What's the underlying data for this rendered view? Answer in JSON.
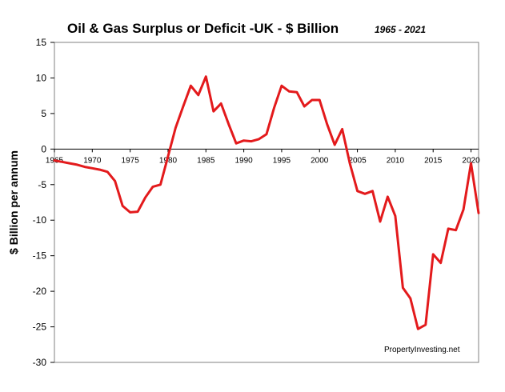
{
  "chart_data": {
    "type": "line",
    "title": "Oil & Gas Surplus or Deficit -UK - $ Billion",
    "subtitle": "1965 - 2021",
    "ylabel": "$ Billion per annum",
    "xlabel": "",
    "xlim": [
      1965,
      2021
    ],
    "ylim": [
      -30,
      15
    ],
    "yticks": [
      15,
      10,
      5,
      0,
      -5,
      -10,
      -15,
      -20,
      -25,
      -30
    ],
    "xticks": [
      1965,
      1970,
      1975,
      1980,
      1985,
      1990,
      1995,
      2000,
      2005,
      2010,
      2015,
      2020
    ],
    "grid": false,
    "legend": "none",
    "annotation": "PropertyInvesting.net",
    "series": [
      {
        "color": "#e31a1c",
        "x": [
          1965,
          1966,
          1967,
          1968,
          1969,
          1970,
          1971,
          1972,
          1973,
          1974,
          1975,
          1976,
          1977,
          1978,
          1979,
          1980,
          1981,
          1982,
          1983,
          1984,
          1985,
          1986,
          1987,
          1988,
          1989,
          1990,
          1991,
          1992,
          1993,
          1994,
          1995,
          1996,
          1997,
          1998,
          1999,
          2000,
          2001,
          2002,
          2003,
          2004,
          2005,
          2006,
          2007,
          2008,
          2009,
          2010,
          2011,
          2012,
          2013,
          2014,
          2015,
          2016,
          2017,
          2018,
          2019,
          2020,
          2021
        ],
        "values": [
          -1.6,
          -1.8,
          -2.0,
          -2.2,
          -2.5,
          -2.7,
          -2.9,
          -3.2,
          -4.5,
          -8.0,
          -8.9,
          -8.8,
          -6.8,
          -5.3,
          -5.0,
          -1.0,
          3.0,
          6.0,
          8.9,
          7.6,
          10.2,
          5.3,
          6.4,
          3.5,
          0.8,
          1.2,
          1.1,
          1.4,
          2.1,
          5.8,
          8.9,
          8.1,
          8.0,
          6.0,
          6.9,
          6.9,
          3.5,
          0.6,
          2.8,
          -2.0,
          -5.9,
          -6.3,
          -5.9,
          -10.2,
          -6.7,
          -9.4,
          -19.5,
          -21.0,
          -25.3,
          -24.7,
          -14.8,
          -16.0,
          -11.2,
          -11.4,
          -8.5,
          -2.0,
          -9.0
        ]
      }
    ]
  }
}
